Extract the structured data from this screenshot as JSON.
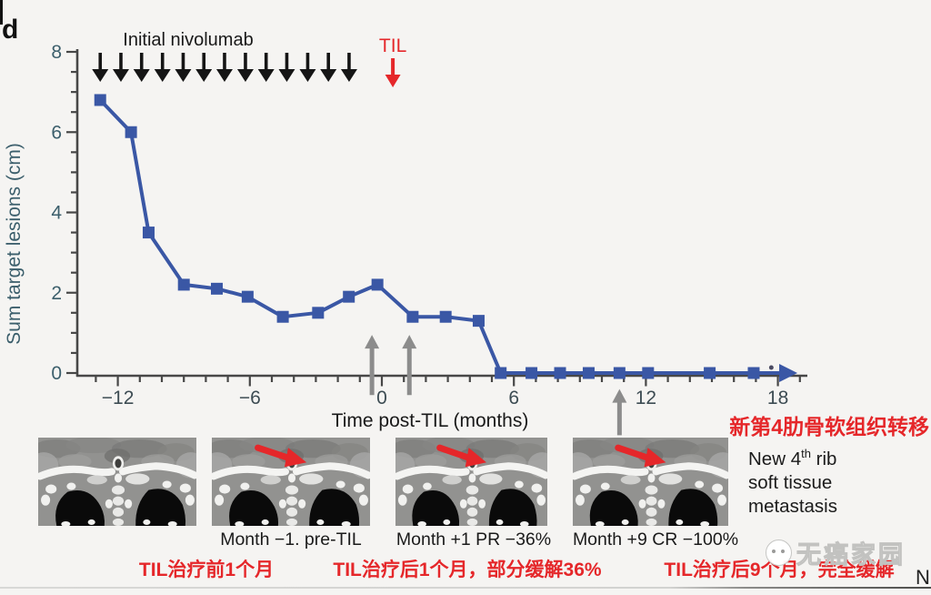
{
  "panel": {
    "label": "d"
  },
  "chart_data": {
    "type": "line",
    "title": "",
    "xlabel": "Time post-TIL (months)",
    "ylabel": "Sum target lesions (cm)",
    "xlim": [
      -13.8,
      19.3
    ],
    "ylim": [
      0,
      8
    ],
    "grid": false,
    "x_major_ticks": [
      -12,
      -6,
      0,
      6,
      12,
      18
    ],
    "x_major_tick_labels": [
      "−12",
      "−6",
      "0",
      "6",
      "12",
      "18"
    ],
    "x_minor_tick_step": 1,
    "y_major_ticks": [
      0,
      2,
      4,
      6,
      8
    ],
    "y_minor_tick_step": 0.5,
    "series": [
      {
        "name": "sum-target-lesions",
        "color": "#3a57a5",
        "marker": "square",
        "points": [
          [
            -12.8,
            6.8
          ],
          [
            -11.4,
            6.0
          ],
          [
            -10.6,
            3.5
          ],
          [
            -9.0,
            2.2
          ],
          [
            -7.5,
            2.1
          ],
          [
            -6.1,
            1.9
          ],
          [
            -4.5,
            1.4
          ],
          [
            -2.9,
            1.5
          ],
          [
            -1.5,
            1.9
          ],
          [
            -0.2,
            2.2
          ],
          [
            1.4,
            1.4
          ],
          [
            2.9,
            1.4
          ],
          [
            4.4,
            1.3
          ],
          [
            5.4,
            0
          ],
          [
            6.8,
            0
          ],
          [
            8.1,
            0
          ],
          [
            9.4,
            0
          ],
          [
            10.8,
            0
          ],
          [
            12.1,
            0
          ],
          [
            14.9,
            0
          ],
          [
            16.9,
            0
          ]
        ],
        "line_extends_to_month": 18.1,
        "end_arrow": true,
        "end_dot_month": 17.7
      }
    ],
    "annotations": {
      "nivolumab": {
        "label": "Initial nivolumab",
        "color": "#151515",
        "arrow_months": [
          -12.8,
          -11.86,
          -10.92,
          -9.97,
          -9.03,
          -8.09,
          -7.15,
          -6.2,
          -5.26,
          -4.32,
          -3.37,
          -2.43,
          -1.49
        ]
      },
      "til": {
        "label": "TIL",
        "arrow_month": 0.5,
        "color": "#e5272a"
      },
      "gray_arrows": [
        {
          "month": -0.45,
          "tip_y_value": 0.95,
          "tail_y_value": -0.55
        },
        {
          "month": 1.25,
          "tip_y_value": 0.95,
          "tail_y_value": -0.55
        },
        {
          "month": 10.8,
          "tip_y_value": -0.4,
          "tail_y_value": -1.55
        }
      ]
    }
  },
  "scans": {
    "captions": [
      "Month −1. pre-TIL",
      "Month +1 PR −36%",
      "Month +9 CR −100%"
    ],
    "cn_captions": [
      "TIL治疗前1个月",
      "TIL治疗后1个月，部分缓解36%",
      "TIL治疗后9个月，完全缓解"
    ],
    "items": [
      {
        "red_arrow": false
      },
      {
        "red_arrow": true
      },
      {
        "red_arrow": true
      },
      {
        "red_arrow": true
      }
    ]
  },
  "metastasis_note": {
    "cn": "新第4肋骨软组织转移",
    "en_prefix": "New 4",
    "en_sup": "th",
    "en_suffix": " rib",
    "en_line2": "soft tissue",
    "en_line3": "metastasis"
  },
  "watermark": {
    "text": "无癌家园"
  },
  "corner_letter": "N",
  "colors": {
    "line_blue": "#3a57a5",
    "accent_red": "#e5272a",
    "axis_teal": "#3c5f6c",
    "gray_arrow": "#8c8c8c",
    "axis_line": "#474747"
  }
}
